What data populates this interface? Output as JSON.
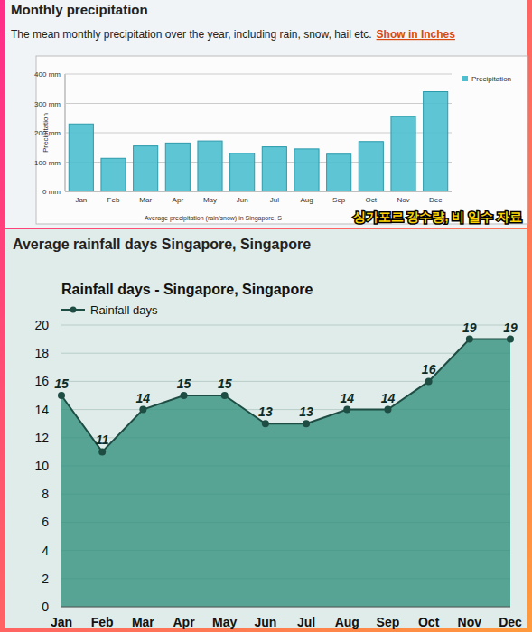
{
  "page": {
    "heading": "Monthly precipitation",
    "description": "The mean monthly precipitation over the year, including rain, snow, hail etc.",
    "link": "Show in Inches",
    "overlay": "싱가포르 강수량, 비 일수 자료",
    "heading2": "Average rainfall days Singapore, Singapore"
  },
  "chart_data": [
    {
      "type": "bar",
      "x_label": "Average precipitation (rain/snow) in Singapore, S",
      "y_label": "Precipitation",
      "categories": [
        "Jan",
        "Feb",
        "Mar",
        "Apr",
        "May",
        "Jun",
        "Jul",
        "Aug",
        "Sep",
        "Oct",
        "Nov",
        "Dec"
      ],
      "series": [
        {
          "name": "Precipitation",
          "color": "#4dbfcf",
          "values": [
            230,
            113,
            155,
            165,
            172,
            130,
            152,
            145,
            127,
            170,
            255,
            340
          ]
        }
      ],
      "ylim": [
        0,
        400
      ],
      "yticks": [
        {
          "value": 0,
          "label": "0 mm"
        },
        {
          "value": 100,
          "label": "100 mm"
        },
        {
          "value": 200,
          "label": "200 mm"
        },
        {
          "value": 300,
          "label": "300 mm"
        },
        {
          "value": 400,
          "label": "400 mm"
        }
      ],
      "grid": true,
      "legend": "top-right"
    },
    {
      "type": "area",
      "title": "Rainfall days - Singapore, Singapore",
      "categories": [
        "Jan",
        "Feb",
        "Mar",
        "Apr",
        "May",
        "Jun",
        "Jul",
        "Aug",
        "Sep",
        "Oct",
        "Nov",
        "Dec"
      ],
      "series": [
        {
          "name": "Rainfall days",
          "color": "#2a8c78",
          "marker": "circle",
          "values": [
            15,
            11,
            14,
            15,
            15,
            13,
            13,
            14,
            14,
            16,
            19,
            19
          ]
        }
      ],
      "ylim": [
        0,
        20
      ],
      "yticks": [
        0,
        2,
        4,
        6,
        8,
        10,
        12,
        14,
        16,
        18,
        20
      ],
      "grid": true,
      "legend": "top-left",
      "data_labels": true
    }
  ]
}
